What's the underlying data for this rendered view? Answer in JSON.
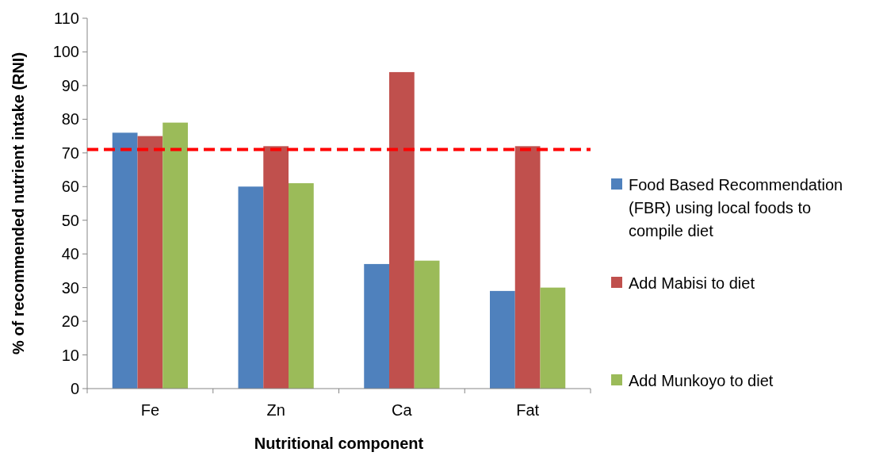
{
  "chart_data": {
    "type": "bar",
    "xlabel": "Nutritional component",
    "ylabel": "% of recommended nutrient intake (RNI)",
    "categories": [
      "Fe",
      "Zn",
      "Ca",
      "Fat"
    ],
    "series": [
      {
        "name": "Food Based Recommendation (FBR) using local foods to compile diet",
        "color": "#4f81bd",
        "values": [
          76,
          60,
          37,
          29
        ]
      },
      {
        "name": "Add Mabisi to diet",
        "color": "#c0504d",
        "values": [
          75,
          72,
          94,
          72
        ]
      },
      {
        "name": "Add Munkoyo to diet",
        "color": "#9bbb59",
        "values": [
          79,
          61,
          38,
          30
        ]
      }
    ],
    "ylim": [
      0,
      110
    ],
    "yticks": [
      0,
      10,
      20,
      30,
      40,
      50,
      60,
      70,
      80,
      90,
      100,
      110
    ],
    "ref_lines": [
      {
        "axis": "y",
        "value": 71,
        "color": "#ff0000",
        "line_style": "dashed"
      }
    ],
    "legend": "right",
    "grid": false
  }
}
